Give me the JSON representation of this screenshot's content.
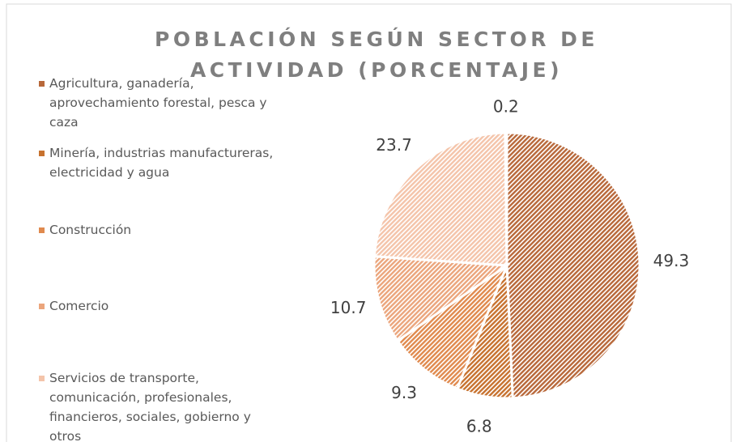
{
  "chart_data": {
    "type": "pie",
    "title": "POBLACIÓN SEGÚN SECTOR DE ACTIVIDAD (PORCENTAJE)",
    "categories": [
      "Agricultura, ganadería, aprovechamiento forestal, pesca y caza",
      "Minería, industrias manufactureras, electricidad y agua",
      "Construcción",
      "Comercio",
      "Servicios de transporte, comunicación, profesionales, financieros, sociales, gobierno y otros",
      null
    ],
    "values": [
      49.3,
      6.8,
      9.3,
      10.7,
      23.7,
      0.2
    ],
    "colors": [
      "#b8683a",
      "#c7722f",
      "#e08a4e",
      "#eba57c",
      "#f4c4aa",
      "#f8ddd0"
    ]
  }
}
